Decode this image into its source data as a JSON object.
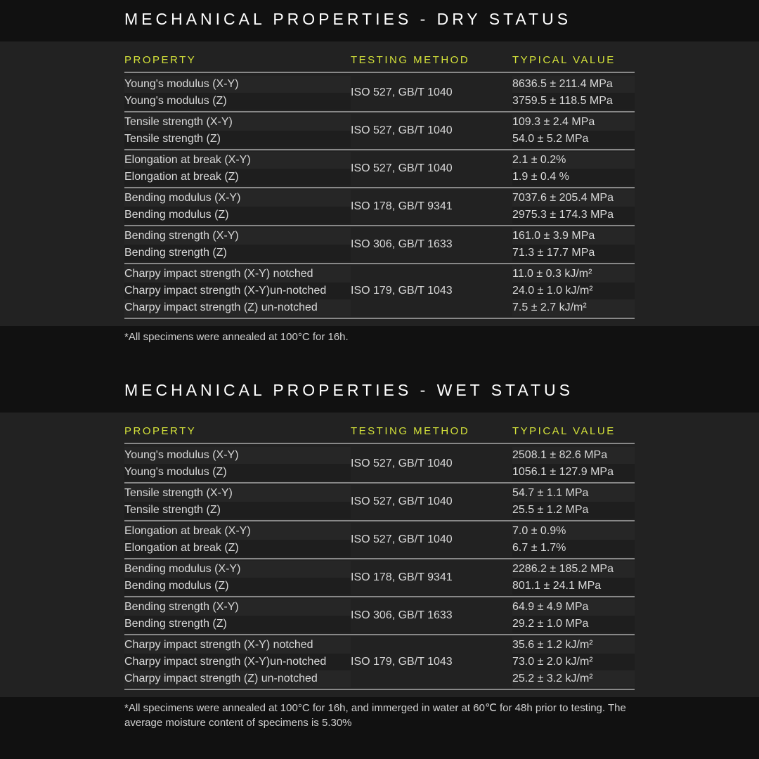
{
  "colors": {
    "page_bg": "#111111",
    "table_bg": "#222222",
    "row_odd": "#262626",
    "row_even": "#1e1e1e",
    "heading_text": "#ffffff",
    "header_text": "#d4e23a",
    "body_text": "#d8d8d8",
    "rule": "#888888"
  },
  "columns": {
    "property": "PROPERTY",
    "method": "TESTING METHOD",
    "value": "TYPICAL VALUE"
  },
  "sections": [
    {
      "title": "MECHANICAL PROPERTIES - DRY STATUS",
      "footnote": "*All specimens were annealed at 100°C for 16h.",
      "groups": [
        {
          "method": "ISO 527, GB/T 1040",
          "rows": [
            {
              "property": "Young's modulus (X-Y)",
              "value": "8636.5 ± 211.4 MPa"
            },
            {
              "property": "Young's modulus (Z)",
              "value": "3759.5 ± 118.5 MPa"
            }
          ]
        },
        {
          "method": "ISO 527, GB/T 1040",
          "rows": [
            {
              "property": "Tensile strength (X-Y)",
              "value": "109.3 ± 2.4 MPa"
            },
            {
              "property": "Tensile strength (Z)",
              "value": "54.0 ± 5.2 MPa"
            }
          ]
        },
        {
          "method": "ISO 527, GB/T 1040",
          "rows": [
            {
              "property": "Elongation at break (X-Y)",
              "value": "2.1 ±  0.2%"
            },
            {
              "property": "Elongation at break (Z)",
              "value": "1.9 ±  0.4 %"
            }
          ]
        },
        {
          "method": "ISO 178, GB/T 9341",
          "rows": [
            {
              "property": "Bending modulus (X-Y)",
              "value": "7037.6  ± 205.4 MPa"
            },
            {
              "property": "Bending modulus (Z)",
              "value": "2975.3  ± 174.3 MPa"
            }
          ]
        },
        {
          "method": "ISO 306, GB/T 1633",
          "rows": [
            {
              "property": "Bending strength (X-Y)",
              "value": "161.0  ± 3.9 MPa"
            },
            {
              "property": "Bending strength (Z)",
              "value": "71.3  ± 17.7 MPa"
            }
          ]
        },
        {
          "method": "ISO 179,  GB/T 1043",
          "rows": [
            {
              "property": "Charpy impact strength (X-Y) notched",
              "value": "11.0  ± 0.3 kJ/m²"
            },
            {
              "property": "Charpy impact strength (X-Y)un-notched",
              "value": "24.0  ± 1.0 kJ/m²"
            },
            {
              "property": "Charpy impact strength (Z) un-notched",
              "value": "7.5 ± 2.7 kJ/m²"
            }
          ]
        }
      ]
    },
    {
      "title": "MECHANICAL PROPERTIES - WET STATUS",
      "footnote": "*All specimens were annealed at 100°C for 16h, and immerged in water at 60℃ for 48h prior to testing. The average moisture content of specimens is 5.30%",
      "groups": [
        {
          "method": "ISO 527, GB/T 1040",
          "rows": [
            {
              "property": "Young's modulus (X-Y)",
              "value": "2508.1 ± 82.6 MPa"
            },
            {
              "property": "Young's modulus (Z)",
              "value": "1056.1 ± 127.9 MPa"
            }
          ]
        },
        {
          "method": "ISO 527, GB/T 1040",
          "rows": [
            {
              "property": "Tensile strength (X-Y)",
              "value": "54.7 ± 1.1 MPa"
            },
            {
              "property": "Tensile strength (Z)",
              "value": "25.5 ± 1.2 MPa"
            }
          ]
        },
        {
          "method": "ISO 527, GB/T 1040",
          "rows": [
            {
              "property": "Elongation at break (X-Y)",
              "value": "7.0 ±  0.9%"
            },
            {
              "property": "Elongation at break (Z)",
              "value": "6.7 ±  1.7%"
            }
          ]
        },
        {
          "method": "ISO 178, GB/T 9341",
          "rows": [
            {
              "property": "Bending modulus (X-Y)",
              "value": "2286.2 ± 185.2 MPa"
            },
            {
              "property": "Bending modulus (Z)",
              "value": "801.1 ± 24.1 MPa"
            }
          ]
        },
        {
          "method": "ISO 306, GB/T 1633",
          "rows": [
            {
              "property": "Bending strength (X-Y)",
              "value": "64.9 ± 4.9 MPa"
            },
            {
              "property": "Bending strength (Z)",
              "value": "29.2 ± 1.0 MPa"
            }
          ]
        },
        {
          "method": "ISO 179,  GB/T 1043",
          "rows": [
            {
              "property": "Charpy impact strength (X-Y) notched",
              "value": "35.6  ± 1.2 kJ/m²"
            },
            {
              "property": "Charpy impact strength (X-Y)un-notched",
              "value": "73.0  ± 2.0 kJ/m²"
            },
            {
              "property": "Charpy impact strength (Z) un-notched",
              "value": "25.2  ± 3.2 kJ/m²"
            }
          ]
        }
      ]
    }
  ]
}
